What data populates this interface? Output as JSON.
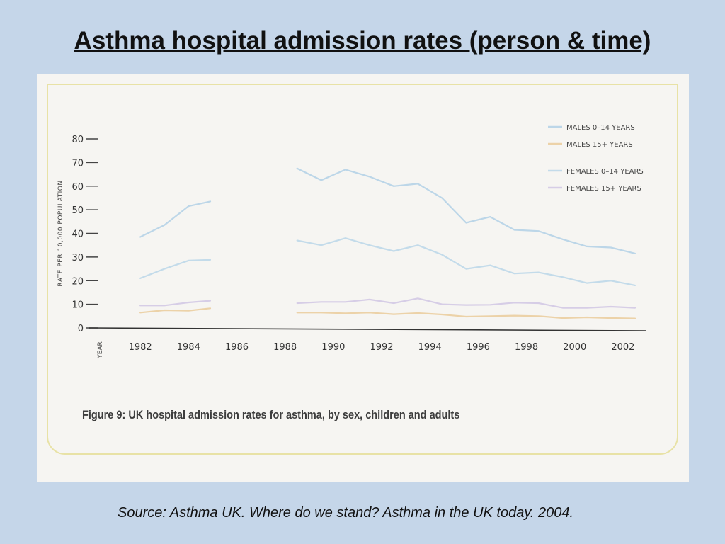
{
  "slide": {
    "title": "Asthma hospital admission rates (person & time)",
    "source": "Source: Asthma UK.  Where do we stand? Asthma in the UK today. 2004."
  },
  "figure": {
    "caption": "Figure 9: UK hospital admission rates for asthma, by sex, children and adults"
  },
  "chart_data": {
    "type": "line",
    "ylabel": "RATE PER 10,000 POPULATION",
    "xlabel": "YEAR",
    "ylim": [
      0,
      80
    ],
    "xlim": [
      1980.5,
      2003
    ],
    "yticks": [
      0,
      10,
      20,
      30,
      40,
      50,
      60,
      70,
      80
    ],
    "xticks": [
      1982,
      1984,
      1986,
      1988,
      1990,
      1992,
      1994,
      1996,
      1998,
      2000,
      2002
    ],
    "legend_position": "top-right",
    "grid": false,
    "series": [
      {
        "name": "MALES 0–14 YEARS",
        "color": "#bcd6e8",
        "segments": [
          [
            [
              1982,
              38.5
            ],
            [
              1983,
              43.5
            ],
            [
              1984,
              51.5
            ],
            [
              1984.9,
              53.5
            ]
          ],
          [
            [
              1988.5,
              67.5
            ],
            [
              1989.5,
              62.5
            ],
            [
              1990.5,
              67
            ],
            [
              1991.5,
              64
            ],
            [
              1992.5,
              60
            ],
            [
              1993.5,
              61
            ],
            [
              1994.5,
              55
            ],
            [
              1995.5,
              44.5
            ],
            [
              1996.5,
              47
            ],
            [
              1997.5,
              41.5
            ],
            [
              1998.5,
              41
            ],
            [
              1999.5,
              37.5
            ],
            [
              2000.5,
              34.5
            ],
            [
              2001.5,
              34
            ],
            [
              2002.5,
              31.5
            ]
          ]
        ]
      },
      {
        "name": "MALES 15+ YEARS",
        "color": "#ecd2a8",
        "segments": [
          [
            [
              1982,
              6.5
            ],
            [
              1983,
              7.5
            ],
            [
              1984,
              7.3
            ],
            [
              1984.9,
              8.3
            ]
          ],
          [
            [
              1988.5,
              6.5
            ],
            [
              1989.5,
              6.5
            ],
            [
              1990.5,
              6.2
            ],
            [
              1991.5,
              6.5
            ],
            [
              1992.5,
              5.8
            ],
            [
              1993.5,
              6.3
            ],
            [
              1994.5,
              5.7
            ],
            [
              1995.5,
              4.8
            ],
            [
              1996.5,
              5
            ],
            [
              1997.5,
              5.2
            ],
            [
              1998.5,
              5
            ],
            [
              1999.5,
              4.2
            ],
            [
              2000.5,
              4.5
            ],
            [
              2001.5,
              4.2
            ],
            [
              2002.5,
              4
            ]
          ]
        ]
      },
      {
        "name": "FEMALES 0–14 YEARS",
        "color": "#c3dbea",
        "segments": [
          [
            [
              1982,
              21
            ],
            [
              1983,
              25
            ],
            [
              1984,
              28.5
            ],
            [
              1984.9,
              28.8
            ]
          ],
          [
            [
              1988.5,
              37
            ],
            [
              1989.5,
              35
            ],
            [
              1990.5,
              38
            ],
            [
              1991.5,
              35
            ],
            [
              1992.5,
              32.5
            ],
            [
              1993.5,
              35
            ],
            [
              1994.5,
              31
            ],
            [
              1995.5,
              25
            ],
            [
              1996.5,
              26.5
            ],
            [
              1997.5,
              23
            ],
            [
              1998.5,
              23.5
            ],
            [
              1999.5,
              21.5
            ],
            [
              2000.5,
              19
            ],
            [
              2001.5,
              20
            ],
            [
              2002.5,
              18
            ]
          ]
        ]
      },
      {
        "name": "FEMALES 15+ YEARS",
        "color": "#d6cde6",
        "segments": [
          [
            [
              1982,
              9.5
            ],
            [
              1983,
              9.5
            ],
            [
              1984,
              10.8
            ],
            [
              1984.9,
              11.5
            ]
          ],
          [
            [
              1988.5,
              10.5
            ],
            [
              1989.5,
              11
            ],
            [
              1990.5,
              11
            ],
            [
              1991.5,
              12
            ],
            [
              1992.5,
              10.5
            ],
            [
              1993.5,
              12.5
            ],
            [
              1994.5,
              10
            ],
            [
              1995.5,
              9.7
            ],
            [
              1996.5,
              9.8
            ],
            [
              1997.5,
              10.7
            ],
            [
              1998.5,
              10.5
            ],
            [
              1999.5,
              8.5
            ],
            [
              2000.5,
              8.5
            ],
            [
              2001.5,
              9
            ],
            [
              2002.5,
              8.5
            ]
          ]
        ]
      }
    ]
  }
}
